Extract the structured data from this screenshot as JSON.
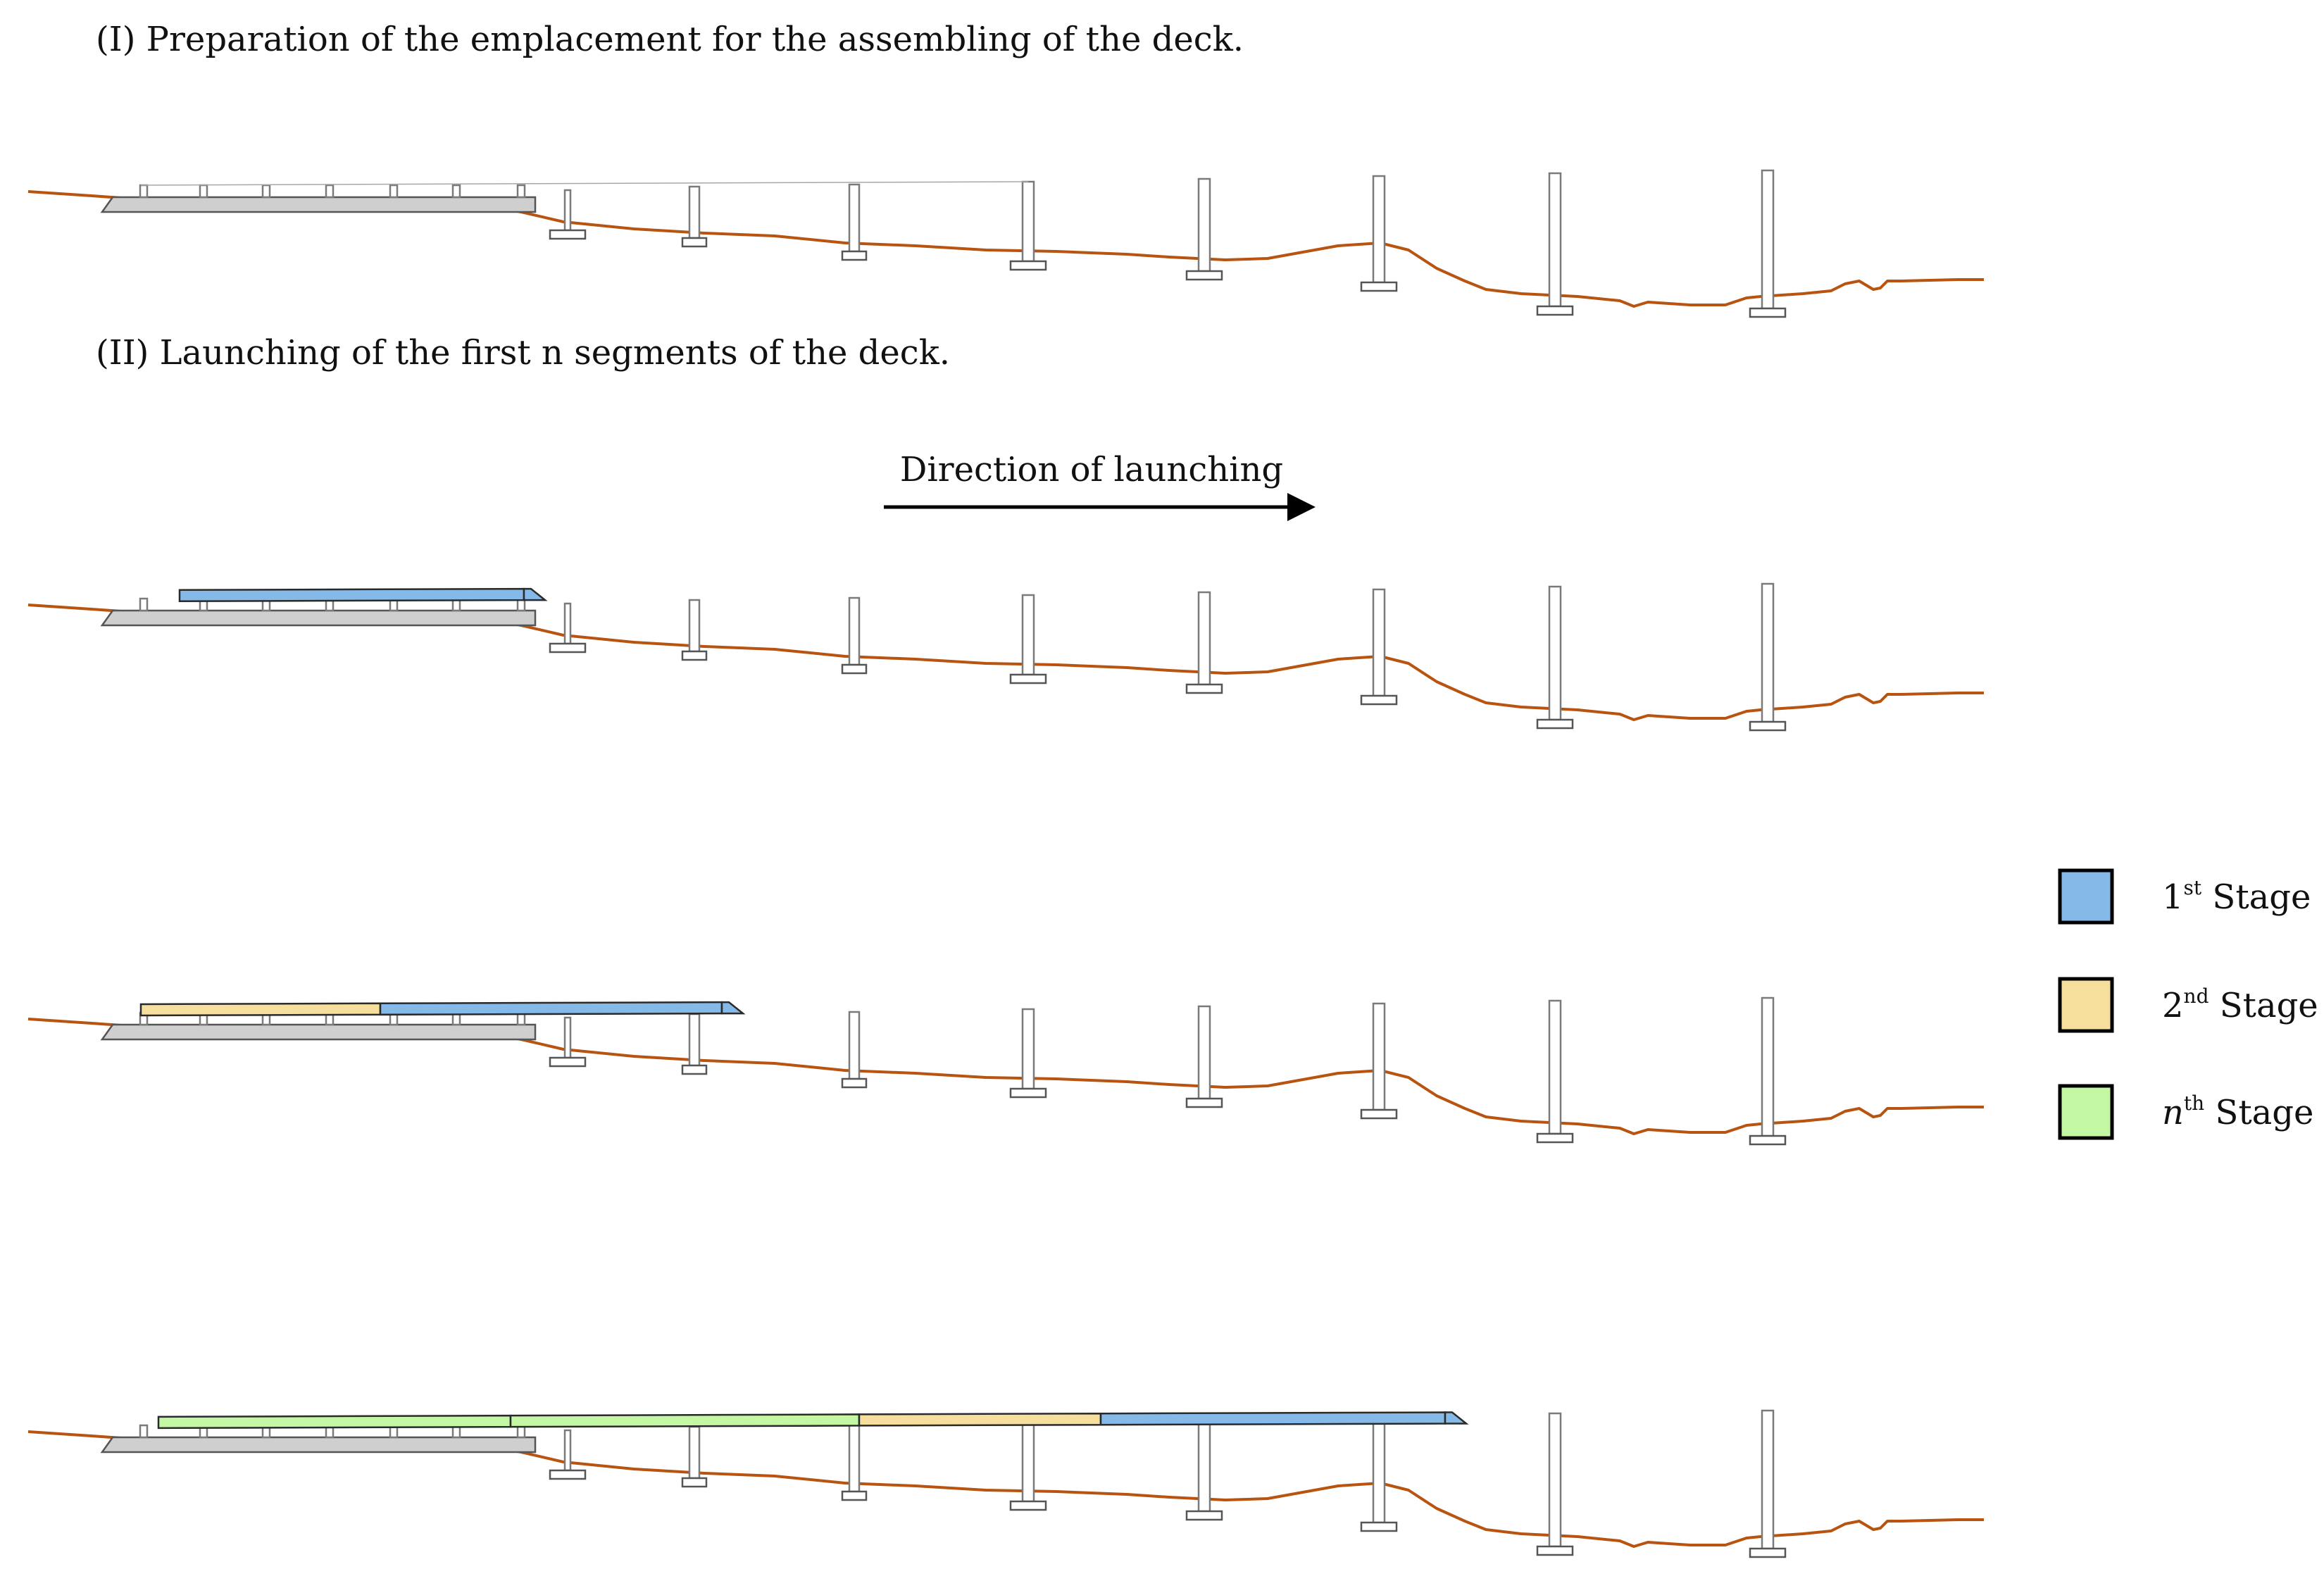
{
  "captions": {
    "stage1": "(I) Preparation of the emplacement for the assembling of the deck.",
    "stage2": "(II) Launching of the first n segments of the deck."
  },
  "arrow": {
    "label": "Direction of launching"
  },
  "legend": [
    {
      "ordinal": "1",
      "suffix": "st",
      "word": "Stage",
      "color": "#85b9e8"
    },
    {
      "ordinal": "2",
      "suffix": "nd",
      "word": "Stage",
      "color": "#f6de9c"
    },
    {
      "ordinal": "n",
      "suffix": "th",
      "word": "Stage",
      "color": "#c4f7a3"
    }
  ],
  "colors": {
    "ground": "#b8540f",
    "pad": "#bdbdbd",
    "stage1": "#85b9e8",
    "stage2": "#f6de9c",
    "stageN": "#c4f7a3"
  }
}
